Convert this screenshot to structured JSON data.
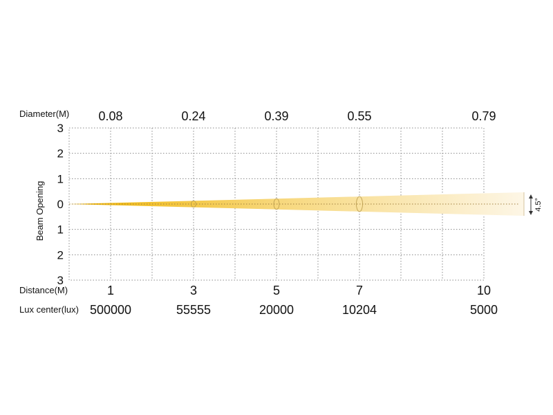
{
  "chart_data": {
    "type": "line",
    "title": "",
    "ylabel": "Beam Opening",
    "diameter_label": "Diameter(M)",
    "distance_label": "Distance(M)",
    "lux_label": "Lux center(lux)",
    "beam_angle_label": "4.5°",
    "xlim": [
      0,
      10
    ],
    "ylim": [
      -3,
      3
    ],
    "y_ticks": [
      "3",
      "2",
      "1",
      "0",
      "1",
      "2",
      "3"
    ],
    "grid": true,
    "distance": [
      "1",
      "3",
      "5",
      "7",
      "10"
    ],
    "diameter": [
      "0.08",
      "0.24",
      "0.39",
      "0.55",
      "0.79"
    ],
    "lux_center": [
      "500000",
      "55555",
      "20000",
      "10204",
      "5000"
    ],
    "x": [
      1,
      3,
      5,
      7,
      10
    ],
    "series": [
      {
        "values": [
          0.08,
          0.24,
          0.39,
          0.55,
          0.79
        ]
      }
    ],
    "colors": {
      "beam_start": "#f0b400",
      "beam_mid": "#f7d77a",
      "beam_end": "#fdf6e6",
      "grid": "#888888"
    }
  }
}
